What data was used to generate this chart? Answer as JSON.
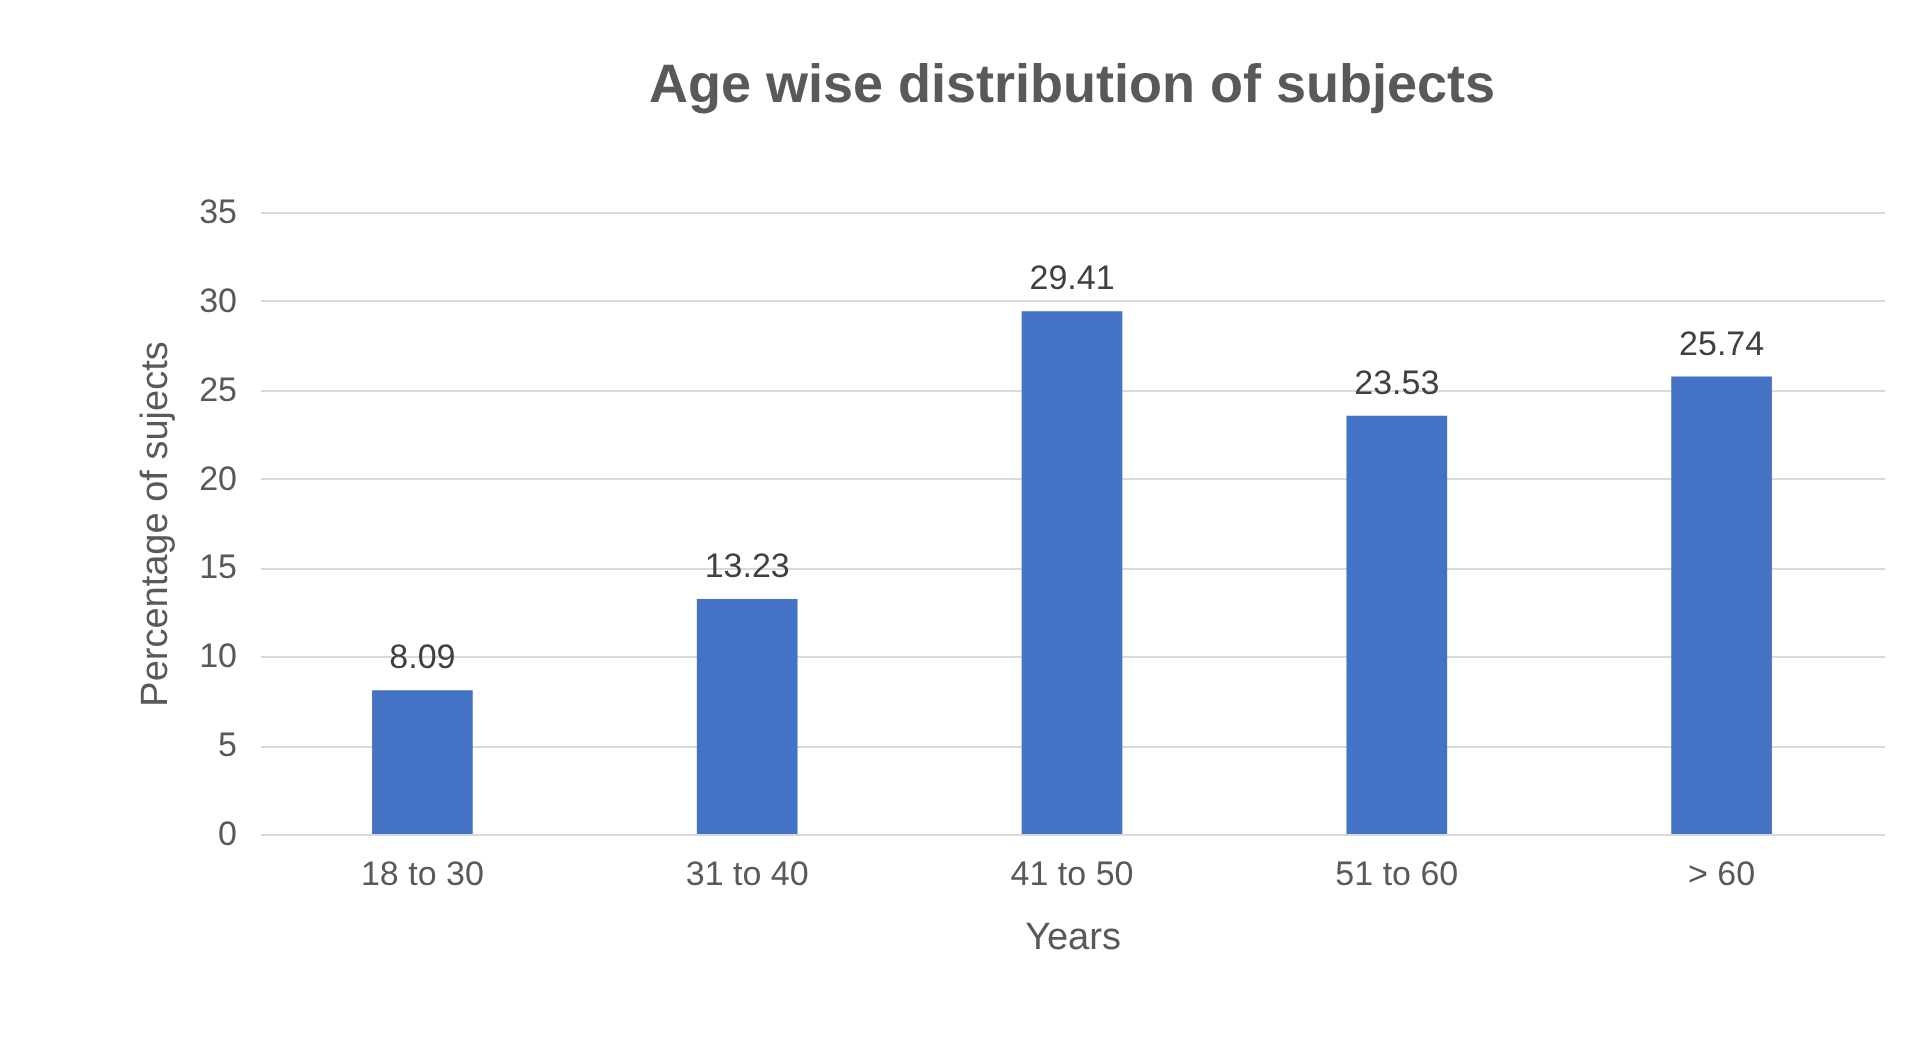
{
  "chart_data": {
    "type": "bar",
    "title": "Age wise distribution of subjects",
    "xlabel": "Years",
    "ylabel": "Percentage of sujects",
    "categories": [
      "18 to 30",
      "31 to 40",
      "41 to 50",
      "51 to 60",
      "> 60"
    ],
    "values": [
      8.09,
      13.23,
      29.41,
      23.53,
      25.74
    ],
    "color": "#4472c4",
    "ylim": [
      0,
      35
    ],
    "yticks": [
      0,
      5,
      10,
      15,
      20,
      25,
      30,
      35
    ],
    "grid": "y",
    "data_labels": true
  }
}
